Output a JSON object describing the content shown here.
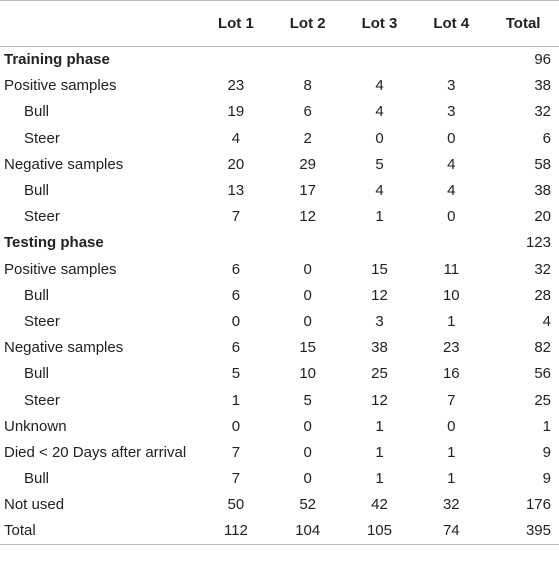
{
  "table": {
    "headers": [
      "",
      "Lot 1",
      "Lot 2",
      "Lot 3",
      "Lot 4",
      "Total"
    ],
    "rows": [
      {
        "label": "Training phase",
        "style": "section",
        "values": [
          "",
          "",
          "",
          "",
          "96"
        ]
      },
      {
        "label": "Positive samples",
        "style": "normal",
        "values": [
          "23",
          "8",
          "4",
          "3",
          "38"
        ]
      },
      {
        "label": "Bull",
        "style": "indent",
        "values": [
          "19",
          "6",
          "4",
          "3",
          "32"
        ]
      },
      {
        "label": "Steer",
        "style": "indent",
        "values": [
          "4",
          "2",
          "0",
          "0",
          "6"
        ]
      },
      {
        "label": "Negative samples",
        "style": "normal",
        "values": [
          "20",
          "29",
          "5",
          "4",
          "58"
        ]
      },
      {
        "label": "Bull",
        "style": "indent",
        "values": [
          "13",
          "17",
          "4",
          "4",
          "38"
        ]
      },
      {
        "label": "Steer",
        "style": "indent",
        "values": [
          "7",
          "12",
          "1",
          "0",
          "20"
        ]
      },
      {
        "label": "Testing phase",
        "style": "section",
        "values": [
          "",
          "",
          "",
          "",
          "123"
        ]
      },
      {
        "label": "Positive samples",
        "style": "normal",
        "values": [
          "6",
          "0",
          "15",
          "11",
          "32"
        ]
      },
      {
        "label": "Bull",
        "style": "indent",
        "values": [
          "6",
          "0",
          "12",
          "10",
          "28"
        ]
      },
      {
        "label": "Steer",
        "style": "indent",
        "values": [
          "0",
          "0",
          "3",
          "1",
          "4"
        ]
      },
      {
        "label": "Negative samples",
        "style": "normal",
        "values": [
          "6",
          "15",
          "38",
          "23",
          "82"
        ]
      },
      {
        "label": "Bull",
        "style": "indent",
        "values": [
          "5",
          "10",
          "25",
          "16",
          "56"
        ]
      },
      {
        "label": "Steer",
        "style": "indent",
        "values": [
          "1",
          "5",
          "12",
          "7",
          "25"
        ]
      },
      {
        "label": "Unknown",
        "style": "normal",
        "values": [
          "0",
          "0",
          "1",
          "0",
          "1"
        ]
      },
      {
        "label": "Died < 20 Days after arrival",
        "style": "normal",
        "values": [
          "7",
          "0",
          "1",
          "1",
          "9"
        ]
      },
      {
        "label": "Bull",
        "style": "indent",
        "values": [
          "7",
          "0",
          "1",
          "1",
          "9"
        ]
      },
      {
        "label": "Not used",
        "style": "normal",
        "values": [
          "50",
          "52",
          "42",
          "32",
          "176"
        ]
      },
      {
        "label": "Total",
        "style": "normal",
        "values": [
          "112",
          "104",
          "105",
          "74",
          "395"
        ]
      }
    ]
  }
}
